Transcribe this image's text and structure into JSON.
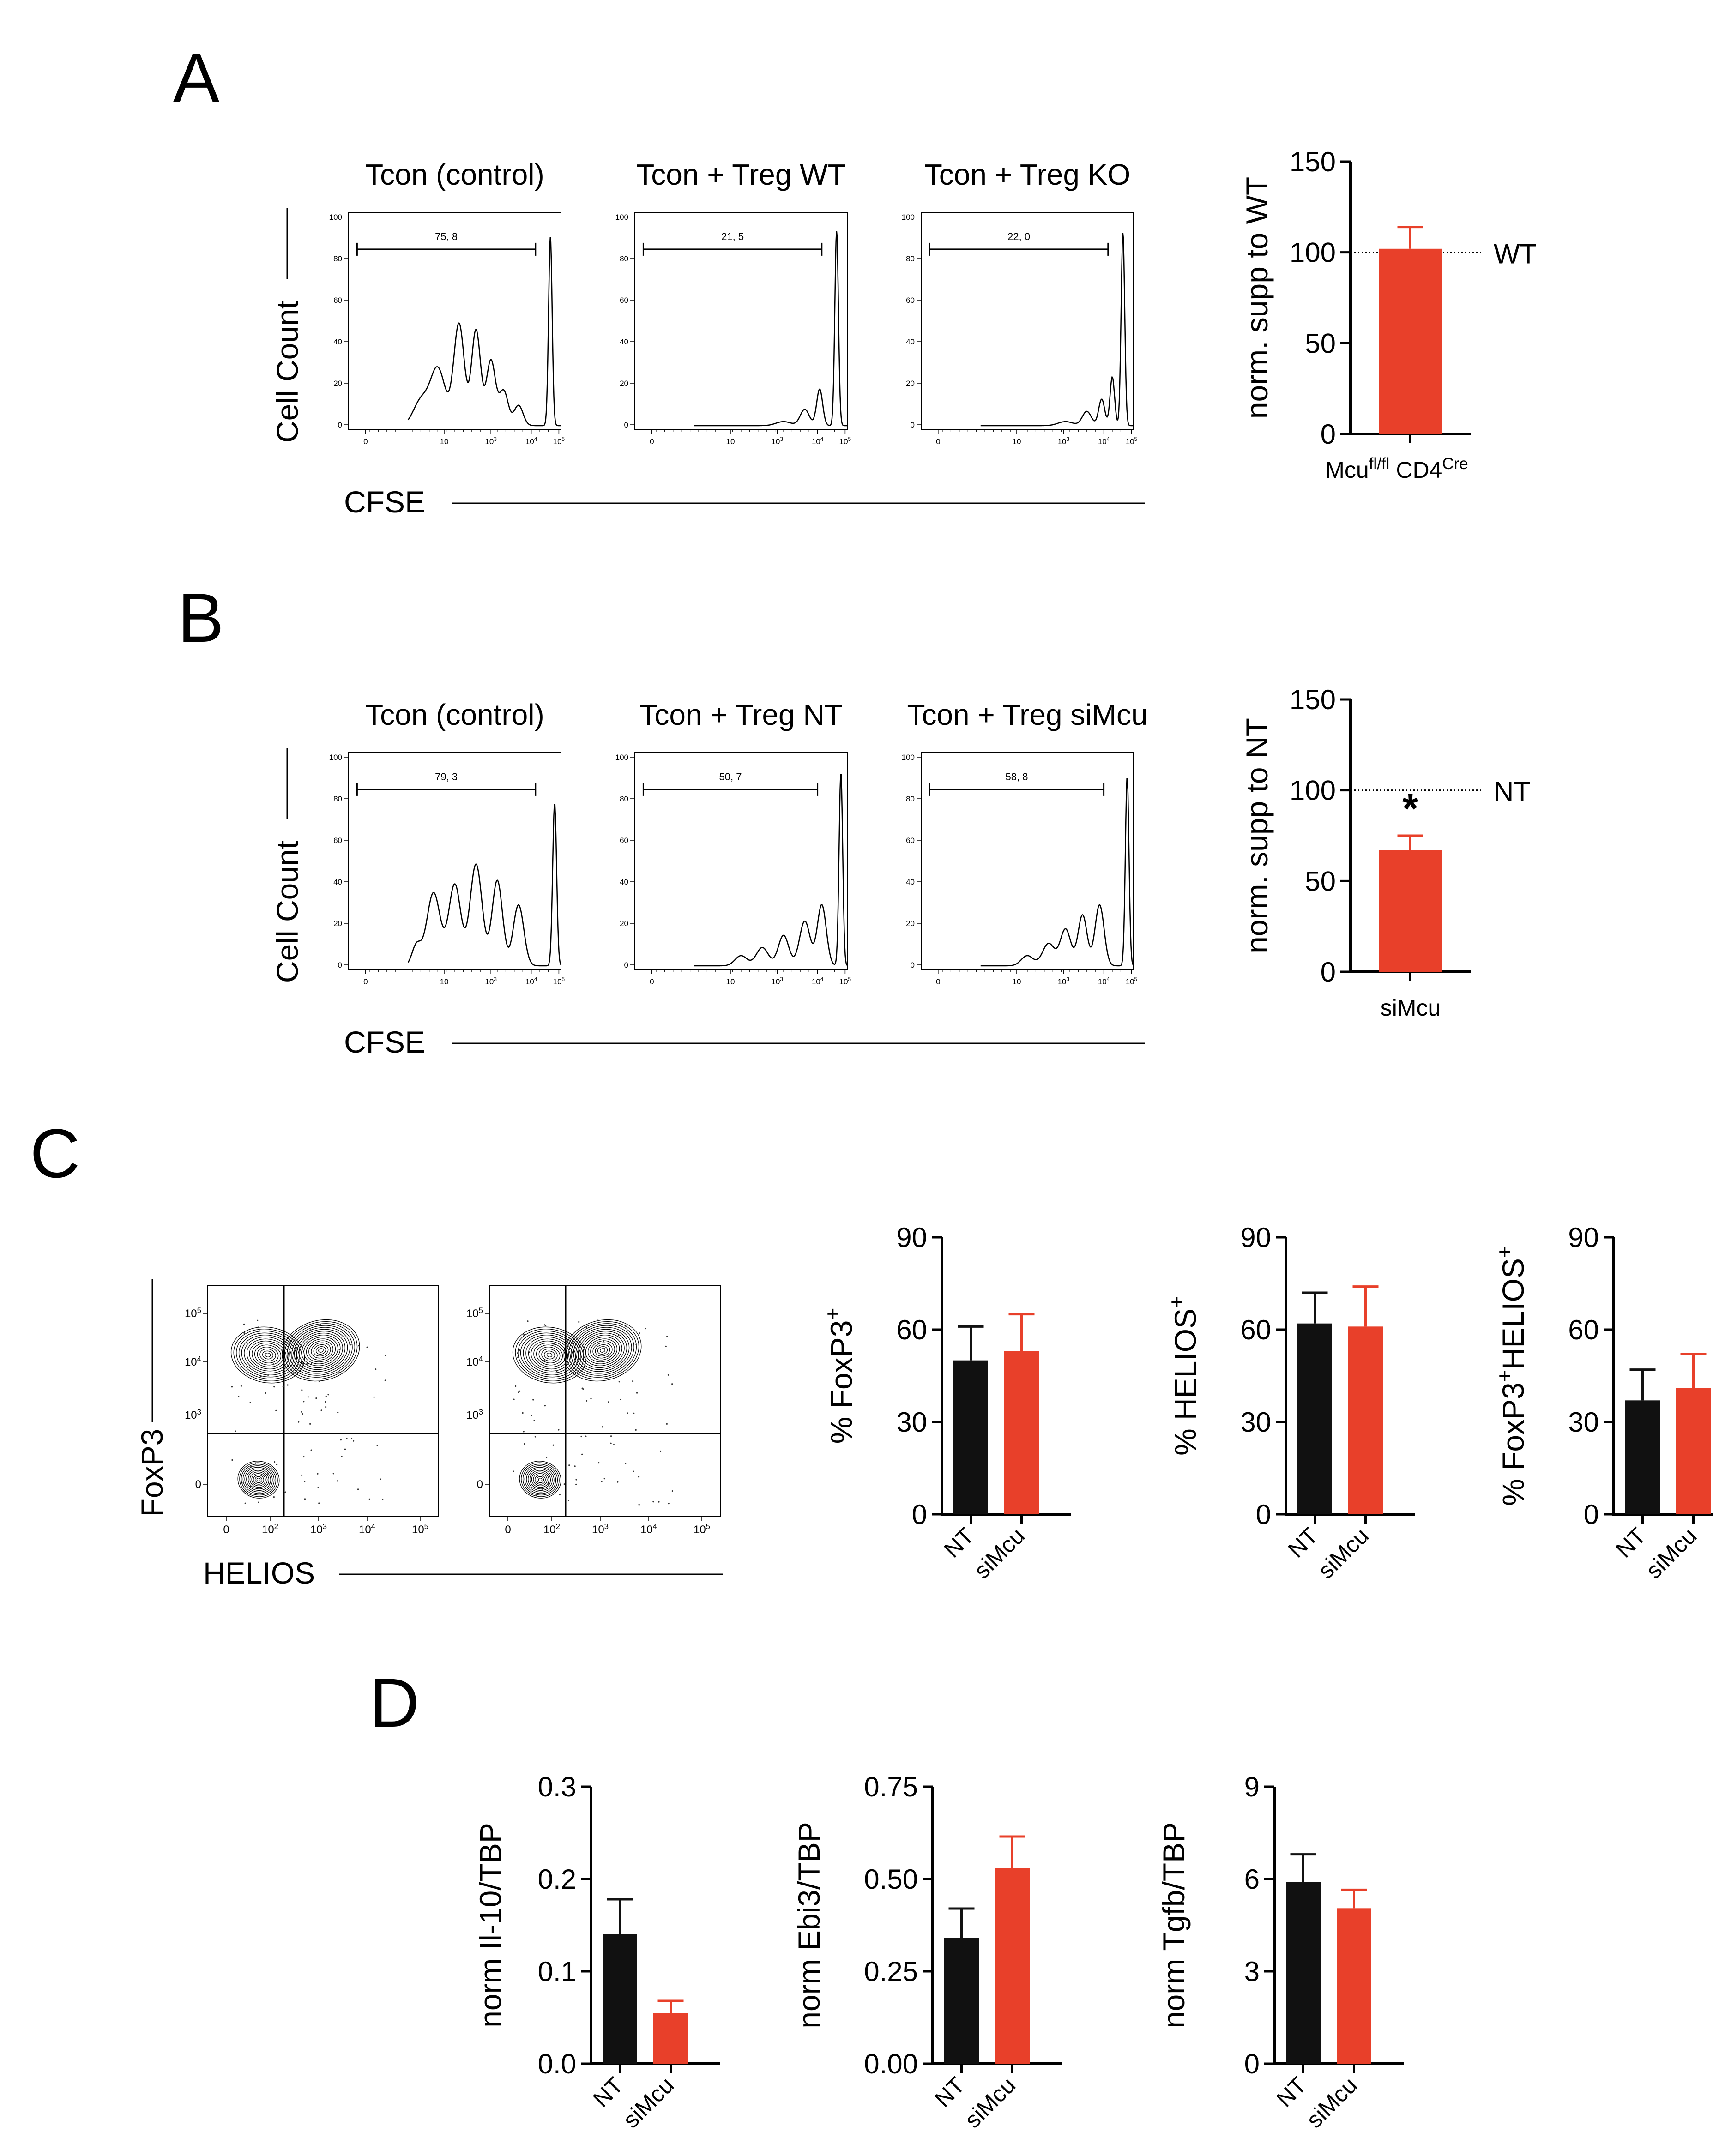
{
  "colors": {
    "black": "#111111",
    "red": "#e8402a",
    "axis": "#000000"
  },
  "panels": {
    "A": {
      "letter": "A",
      "histograms": [
        {
          "title": "Tcon (control)",
          "gate_value": "75, 8"
        },
        {
          "title": "Tcon + Treg WT",
          "gate_value": "21, 5"
        },
        {
          "title": "Tcon + Treg KO",
          "gate_value": "22, 0"
        }
      ],
      "ylabel": "Cell Count",
      "xlabel": "CFSE",
      "bar": {
        "ylabel": "norm. supp to WT",
        "category": "Mcu",
        "category_sup": "fl/fl",
        "category2": "CD4",
        "category2_sup": "Cre",
        "ref_label": "WT",
        "ticks": [
          "150",
          "100",
          "50",
          "0"
        ]
      }
    },
    "B": {
      "letter": "B",
      "histograms": [
        {
          "title": "Tcon (control)",
          "gate_value": "79, 3"
        },
        {
          "title": "Tcon + Treg NT",
          "gate_value": "50, 7"
        },
        {
          "title": "Tcon + Treg siMcu",
          "gate_value": "58, 8"
        }
      ],
      "ylabel": "Cell Count",
      "xlabel": "CFSE",
      "bar": {
        "ylabel": "norm. supp to NT",
        "category": "siMcu",
        "ref_label": "NT",
        "significance": "*",
        "ticks": [
          "150",
          "100",
          "50",
          "0"
        ]
      }
    },
    "C": {
      "letter": "C",
      "flow_ylabel": "FoxP3",
      "flow_xlabel": "HELIOS",
      "charts": [
        {
          "ylabel_prefix": "% FoxP3",
          "ylabel_sup": "+",
          "ylabel_rest": "",
          "ylabel_sup2": ""
        },
        {
          "ylabel_prefix": "% HELIOS",
          "ylabel_sup": "+",
          "ylabel_rest": "",
          "ylabel_sup2": ""
        },
        {
          "ylabel_prefix": "% FoxP3",
          "ylabel_sup": "+",
          "ylabel_rest": "HELIOS",
          "ylabel_sup2": "+"
        }
      ],
      "ticks": [
        "90",
        "60",
        "30",
        "0"
      ]
    },
    "D": {
      "letter": "D",
      "charts": [
        {
          "ylabel": "norm Il-10/TBP",
          "ticks": [
            "0.3",
            "0.2",
            "0.1",
            "0.0"
          ]
        },
        {
          "ylabel": "norm Ebi3/TBP",
          "ticks": [
            "0.75",
            "0.50",
            "0.25",
            "0.00"
          ]
        },
        {
          "ylabel": "norm Tgfb/TBP",
          "ticks": [
            "9",
            "6",
            "3",
            "0"
          ]
        }
      ]
    }
  },
  "flow_ticks": {
    "hist_y": [
      "100",
      "80",
      "60",
      "40",
      "20",
      "0"
    ],
    "hist_x": [
      "0",
      "10",
      "10",
      "10",
      "10"
    ],
    "hist_x_exp": [
      "",
      "3",
      "4",
      "5"
    ],
    "contour_y": [
      "10",
      "10",
      "10",
      "0"
    ],
    "contour_y_exp": [
      "5",
      "4",
      "3"
    ],
    "contour_x": [
      "0",
      "10",
      "10",
      "10",
      "10"
    ],
    "contour_x_exp": [
      "2",
      "3",
      "4",
      "5"
    ]
  },
  "chart_data": [
    {
      "type": "bar",
      "panel": "A",
      "categories": [
        "Mcu fl/fl CD4 Cre"
      ],
      "values": [
        102
      ],
      "errors": [
        12
      ],
      "reference_line": 100,
      "reference_label": "WT",
      "ylabel": "norm. supp to WT",
      "ylim": [
        0,
        150
      ],
      "yticks": [
        0,
        50,
        100,
        150
      ]
    },
    {
      "type": "bar",
      "panel": "B",
      "categories": [
        "siMcu"
      ],
      "values": [
        67
      ],
      "errors": [
        8
      ],
      "reference_line": 100,
      "reference_label": "NT",
      "annotation": "*",
      "ylabel": "norm. supp to NT",
      "ylim": [
        0,
        150
      ],
      "yticks": [
        0,
        50,
        100,
        150
      ]
    },
    {
      "type": "bar",
      "panel": "C",
      "categories": [
        "NT",
        "siMcu"
      ],
      "values": [
        50,
        53
      ],
      "errors": [
        11,
        12
      ],
      "ylabel": "% FoxP3+",
      "ylim": [
        0,
        90
      ],
      "yticks": [
        0,
        30,
        60,
        90
      ]
    },
    {
      "type": "bar",
      "panel": "C",
      "categories": [
        "NT",
        "siMcu"
      ],
      "values": [
        62,
        61
      ],
      "errors": [
        10,
        13
      ],
      "ylabel": "% HELIOS+",
      "ylim": [
        0,
        90
      ],
      "yticks": [
        0,
        30,
        60,
        90
      ]
    },
    {
      "type": "bar",
      "panel": "C",
      "categories": [
        "NT",
        "siMcu"
      ],
      "values": [
        37,
        41
      ],
      "errors": [
        10,
        11
      ],
      "ylabel": "% FoxP3+HELIOS+",
      "ylim": [
        0,
        90
      ],
      "yticks": [
        0,
        30,
        60,
        90
      ]
    },
    {
      "type": "bar",
      "panel": "D",
      "categories": [
        "NT",
        "siMcu"
      ],
      "values": [
        0.14,
        0.055
      ],
      "errors": [
        0.038,
        0.013
      ],
      "ylabel": "norm Il-10/TBP",
      "ylim": [
        0,
        0.3
      ],
      "yticks": [
        0,
        0.1,
        0.2,
        0.3
      ]
    },
    {
      "type": "bar",
      "panel": "D",
      "categories": [
        "NT",
        "siMcu"
      ],
      "values": [
        0.34,
        0.53
      ],
      "errors": [
        0.08,
        0.085
      ],
      "ylabel": "norm Ebi3/TBP",
      "ylim": [
        0,
        0.75
      ],
      "yticks": [
        0,
        0.25,
        0.5,
        0.75
      ]
    },
    {
      "type": "bar",
      "panel": "D",
      "categories": [
        "NT",
        "siMcu"
      ],
      "values": [
        5.9,
        5.05
      ],
      "errors": [
        0.9,
        0.6
      ],
      "ylabel": "norm Tgfb/TBP",
      "ylim": [
        0,
        9
      ],
      "yticks": [
        0,
        3,
        6,
        9
      ]
    }
  ]
}
